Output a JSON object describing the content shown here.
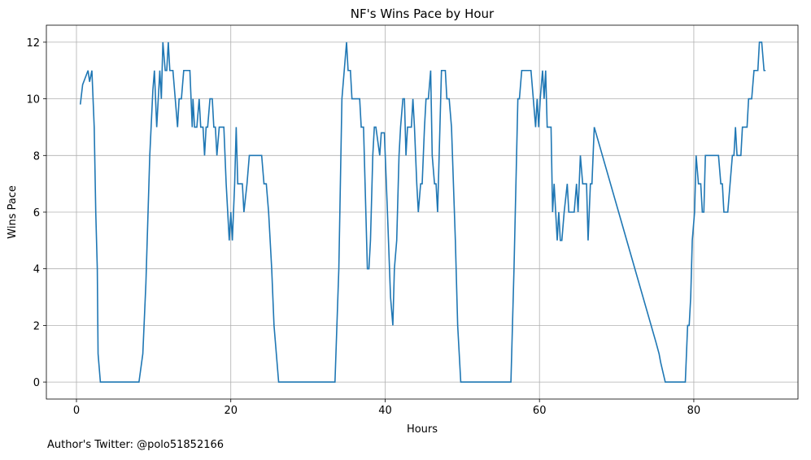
{
  "chart_data": {
    "type": "line",
    "title": "NF's Wins Pace by Hour",
    "x_label": "Hours",
    "y_label": "Wins Pace",
    "footnote": "Author's Twitter: @polo51852166",
    "xlim": [
      -3.9,
      93.5
    ],
    "ylim": [
      -0.6,
      12.6
    ],
    "xticks": [
      0,
      20,
      40,
      60,
      80
    ],
    "yticks": [
      0,
      2,
      4,
      6,
      8,
      10,
      12
    ],
    "grid": true,
    "series": [
      {
        "name": "Wins Pace",
        "color": "#1f77b4",
        "x": [
          0.5,
          0.8,
          1.5,
          1.7,
          2.0,
          2.3,
          2.5,
          2.7,
          2.8,
          3.1,
          8.1,
          8.6,
          9.0,
          9.5,
          9.9,
          10.1,
          10.4,
          10.8,
          11.0,
          11.2,
          11.5,
          11.7,
          11.9,
          12.1,
          12.5,
          12.8,
          13.1,
          13.3,
          13.6,
          13.9,
          14.7,
          15.0,
          15.1,
          15.3,
          15.6,
          15.9,
          16.1,
          16.4,
          16.6,
          16.8,
          17.0,
          17.3,
          17.6,
          17.8,
          18.0,
          18.2,
          18.5,
          19.1,
          19.4,
          19.8,
          20.0,
          20.2,
          20.5,
          20.7,
          20.9,
          21.5,
          21.7,
          22.1,
          22.4,
          24.0,
          24.3,
          24.6,
          24.9,
          25.3,
          25.6,
          25.9,
          26.2,
          33.5,
          34.0,
          34.4,
          34.7,
          35.0,
          35.2,
          35.5,
          35.7,
          36.7,
          36.9,
          37.2,
          37.5,
          37.7,
          37.9,
          38.1,
          38.4,
          38.6,
          38.8,
          39.3,
          39.5,
          39.9,
          40.3,
          40.7,
          41.0,
          41.2,
          41.5,
          41.8,
          42.0,
          42.3,
          42.5,
          42.7,
          42.9,
          43.4,
          43.6,
          43.8,
          44.1,
          44.3,
          44.6,
          44.8,
          45.1,
          45.3,
          45.6,
          45.9,
          46.1,
          46.4,
          46.6,
          46.8,
          47.1,
          47.3,
          47.8,
          48.0,
          48.3,
          48.6,
          49.1,
          49.4,
          49.8,
          56.3,
          56.7,
          57.2,
          57.4,
          57.7,
          58.9,
          59.2,
          59.5,
          59.7,
          59.9,
          60.1,
          60.4,
          60.6,
          60.8,
          61.0,
          61.5,
          61.7,
          61.9,
          62.1,
          62.3,
          62.5,
          62.7,
          62.9,
          63.2,
          63.6,
          63.8,
          64.5,
          64.8,
          65.0,
          65.3,
          65.6,
          66.1,
          66.3,
          66.6,
          66.8,
          67.1,
          75.1,
          75.5,
          75.7,
          76.3,
          78.9,
          79.2,
          79.4,
          79.6,
          79.8,
          80.1,
          80.3,
          80.6,
          80.9,
          81.1,
          81.3,
          81.5,
          83.2,
          83.5,
          83.7,
          83.9,
          84.4,
          84.7,
          85.0,
          85.2,
          85.4,
          85.6,
          86.1,
          86.3,
          86.9,
          87.1,
          87.5,
          87.8,
          88.3,
          88.5,
          88.8,
          89.1,
          89.3
        ],
        "values": [
          9.8,
          10.5,
          11,
          10.6,
          11,
          9,
          6,
          4,
          1,
          0,
          0,
          1,
          3.5,
          8,
          10.3,
          11,
          9,
          11,
          10,
          12,
          11,
          11,
          12,
          11,
          11,
          10,
          9,
          10,
          10,
          11,
          11,
          9,
          10,
          9,
          9,
          10,
          9,
          9,
          8,
          9,
          9,
          10,
          10,
          9,
          9,
          8,
          9,
          9,
          7,
          5,
          6,
          5,
          7,
          9,
          7,
          7,
          6,
          7,
          8,
          8,
          7,
          7,
          6,
          4,
          2,
          1,
          0,
          0,
          4,
          10,
          11,
          12,
          11,
          11,
          10,
          10,
          9,
          9,
          6,
          4,
          4,
          5,
          8,
          9,
          9,
          8,
          8.8,
          8.8,
          6,
          3,
          2,
          4,
          5,
          8,
          9,
          10,
          10,
          8,
          9,
          9,
          10,
          9,
          7,
          6,
          7,
          7,
          9,
          10,
          10,
          11,
          8,
          7,
          7,
          6,
          9,
          11,
          11,
          10,
          10,
          9,
          5,
          2,
          0,
          0,
          4,
          10,
          10,
          11,
          11,
          10,
          9,
          10,
          9,
          10,
          11,
          10,
          11,
          9,
          9,
          6,
          7,
          6,
          5,
          6,
          5,
          5,
          6,
          7,
          6,
          6,
          7,
          6,
          8,
          7,
          7,
          5,
          7,
          7,
          9,
          1.4,
          1,
          0.7,
          0,
          0,
          2,
          2,
          3,
          5,
          6,
          8,
          7,
          7,
          6,
          6,
          8,
          8,
          7,
          7,
          6,
          6,
          7,
          8,
          8,
          9,
          8,
          8,
          9,
          9,
          10,
          10,
          11,
          11,
          12,
          12,
          11,
          11
        ]
      }
    ]
  }
}
